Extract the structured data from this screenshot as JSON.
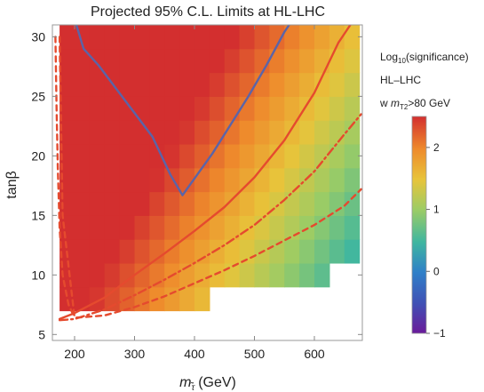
{
  "chart_data": {
    "type": "heatmap",
    "title": "Projected 95% C.L. Limits at HL-LHC",
    "xlabel": {
      "symbol": "m",
      "sub": "τ̃",
      "unit": "(GeV)"
    },
    "ylabel": {
      "symbol": "tanβ"
    },
    "xlim": [
      163,
      680
    ],
    "ylim": [
      4.5,
      31
    ],
    "x_ticks": [
      "200",
      "300",
      "400",
      "500",
      "600"
    ],
    "x_tick_values": [
      200,
      300,
      400,
      500,
      600
    ],
    "y_ticks": [
      "5",
      "10",
      "15",
      "20",
      "25",
      "30"
    ],
    "y_tick_values": [
      5,
      10,
      15,
      20,
      25,
      30
    ],
    "colorbar": {
      "title_base": "Log",
      "title_sub": "10",
      "title_rest": "(significance)",
      "range": [
        -1,
        2.5
      ],
      "ticks": [
        "−1",
        "0",
        "1",
        "2"
      ],
      "tick_values": [
        -1,
        0,
        1,
        2
      ]
    },
    "annotations": {
      "line1": "HL–LHC",
      "line2_prefix": "w ",
      "line2_var": "m",
      "line2_sub": "T2",
      "line2_suffix": ">80 GeV"
    },
    "grid": {
      "x_min": 175,
      "x_step": 25,
      "nx": 20,
      "y_min": 5,
      "y_step": 2,
      "ny": 13,
      "model": {
        "a": 2.6,
        "b": -0.0045,
        "c": 0.055,
        "d": 4.2e-06,
        "tanb_ref": 20,
        "tanb_slope": 0.00038
      },
      "empty_cells": [
        [
          0,
          0
        ],
        [
          1,
          0
        ],
        [
          2,
          0
        ],
        [
          3,
          0
        ],
        [
          4,
          0
        ],
        [
          5,
          0
        ],
        [
          6,
          0
        ],
        [
          7,
          0
        ],
        [
          8,
          0
        ],
        [
          9,
          0
        ],
        [
          10,
          0
        ],
        [
          11,
          0
        ],
        [
          12,
          0
        ],
        [
          13,
          0
        ],
        [
          14,
          0
        ],
        [
          15,
          0
        ],
        [
          16,
          0
        ],
        [
          17,
          0
        ],
        [
          18,
          0
        ],
        [
          19,
          0
        ],
        [
          10,
          1
        ],
        [
          11,
          1
        ],
        [
          12,
          1
        ],
        [
          13,
          1
        ],
        [
          14,
          1
        ],
        [
          15,
          1
        ],
        [
          16,
          1
        ],
        [
          17,
          1
        ],
        [
          18,
          1
        ],
        [
          19,
          1
        ],
        [
          18,
          2
        ],
        [
          19,
          2
        ]
      ]
    },
    "contours": [
      {
        "style": "solid",
        "color": "#5b64a8",
        "x": [
          203,
          215,
          240,
          270,
          300,
          330,
          360,
          380,
          400,
          430,
          460,
          490,
          520,
          550,
          558
        ],
        "y": [
          31,
          29,
          27.6,
          25.6,
          23.6,
          21.6,
          18.4,
          16.7,
          18.1,
          20.2,
          22.6,
          25,
          27.6,
          30.4,
          31
        ]
      },
      {
        "style": "solid",
        "color": "#e54a2e",
        "x": [
          175,
          200,
          250,
          300,
          350,
          400,
          450,
          500,
          550,
          600,
          640,
          660
        ],
        "y": [
          6.3,
          6.8,
          8.1,
          10.0,
          11.8,
          13.7,
          15.7,
          18.2,
          21.3,
          25.3,
          29.5,
          31
        ]
      },
      {
        "style": "dashdot",
        "color": "#e54a2e",
        "x": [
          175,
          200,
          250,
          300,
          350,
          400,
          450,
          500,
          550,
          600,
          650,
          678
        ],
        "y": [
          6.2,
          6.3,
          7.1,
          8.3,
          9.6,
          11.0,
          12.5,
          14.2,
          16.3,
          18.7,
          21.8,
          23.5
        ]
      },
      {
        "style": "dashed",
        "color": "#e54a2e",
        "x": [
          175,
          180,
          200,
          250,
          300,
          350,
          400,
          450,
          500,
          550,
          600,
          650,
          678
        ],
        "y": [
          30,
          15,
          6.4,
          6.6,
          7.3,
          8.2,
          9.3,
          10.4,
          11.6,
          12.9,
          14.2,
          15.8,
          17.2
        ]
      },
      {
        "style": "dashed",
        "color": "#e54a2e",
        "x": [
          168,
          170,
          172,
          175,
          180,
          190,
          200
        ],
        "y": [
          30,
          24,
          19,
          14,
          10,
          7.5,
          6.4
        ]
      }
    ]
  }
}
